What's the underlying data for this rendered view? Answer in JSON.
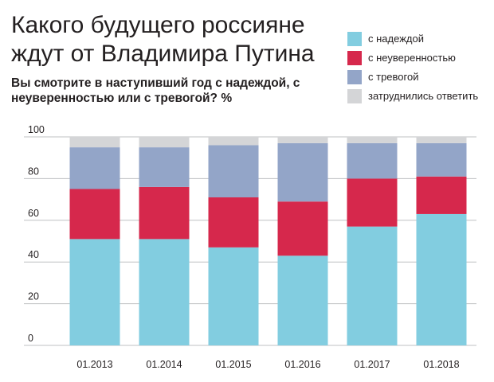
{
  "title": "Какого будущего россияне ждут от Владимира Путина",
  "subtitle": "Вы смотрите в наступивший год с надеждой, с неуверенностью или с тревогой? %",
  "legend": [
    {
      "label": "с надеждой",
      "color": "#82cde0"
    },
    {
      "label": "с неуверенностью",
      "color": "#d6284c"
    },
    {
      "label": "с тревогой",
      "color": "#93a5c8"
    },
    {
      "label": "затруднились ответить",
      "color": "#d4d5d7"
    }
  ],
  "chart_data": {
    "type": "bar",
    "stacked": true,
    "title": "Какого будущего россияне ждут от Владимира Путина",
    "subtitle": "Вы смотрите в наступивший год с надеждой, с неуверенностью или с тревогой? %",
    "categories": [
      "01.2013",
      "01.2014",
      "01.2015",
      "01.2016",
      "01.2017",
      "01.2018"
    ],
    "series": [
      {
        "name": "с надеждой",
        "color": "#82cde0",
        "values": [
          51,
          51,
          47,
          43,
          57,
          63
        ]
      },
      {
        "name": "с неуверенностью",
        "color": "#d6284c",
        "values": [
          24,
          25,
          24,
          26,
          23,
          18
        ]
      },
      {
        "name": "с тревогой",
        "color": "#93a5c8",
        "values": [
          20,
          19,
          25,
          28,
          17,
          16
        ]
      },
      {
        "name": "затруднились ответить",
        "color": "#d4d5d7",
        "values": [
          5,
          5,
          4,
          3,
          3,
          3
        ]
      }
    ],
    "yticks": [
      0,
      20,
      40,
      60,
      80,
      100
    ],
    "ylim": [
      0,
      100
    ],
    "grid": true,
    "legend_position": "top-right",
    "xlabel": "",
    "ylabel": ""
  }
}
